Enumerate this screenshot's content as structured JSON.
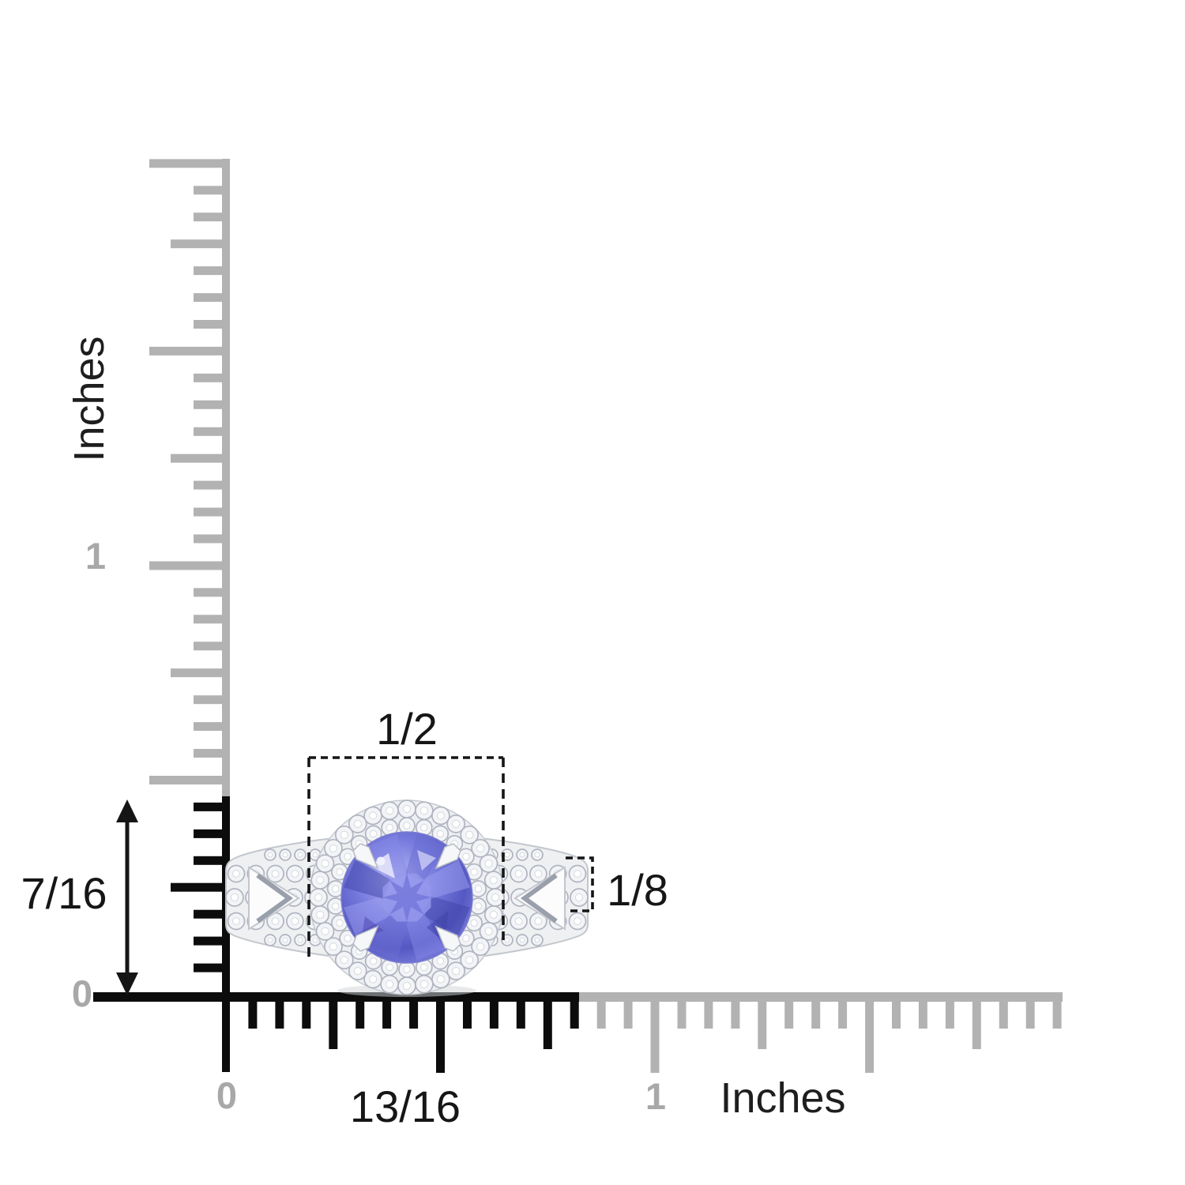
{
  "rulers": {
    "vertical": {
      "unit_label": "Inches",
      "one": "1",
      "zero": "0"
    },
    "horizontal": {
      "zero": "0",
      "one": "1",
      "unit_label": "Inches"
    }
  },
  "annotations": {
    "halo_width": "1/2",
    "ring_height": "7/16",
    "band_width": "1/8",
    "overall_width": "13/16"
  },
  "colors": {
    "ruler_gray": "#b2b2b2",
    "label_gray": "#a8a8a8",
    "ruler_black": "#0c0c0c",
    "annotation_black": "#151515",
    "band_fill": "#eef0f2",
    "metal_stroke": "#c3c6cd",
    "diamond_fill": "#f3f4f7",
    "diamond_stroke": "#b0b4bf",
    "tanzanite_light": "#bdbdf4",
    "tanzanite_mid": "#7d80e0",
    "tanzanite_deep": "#5558c2",
    "tanzanite_dark": "#3f43a8"
  }
}
